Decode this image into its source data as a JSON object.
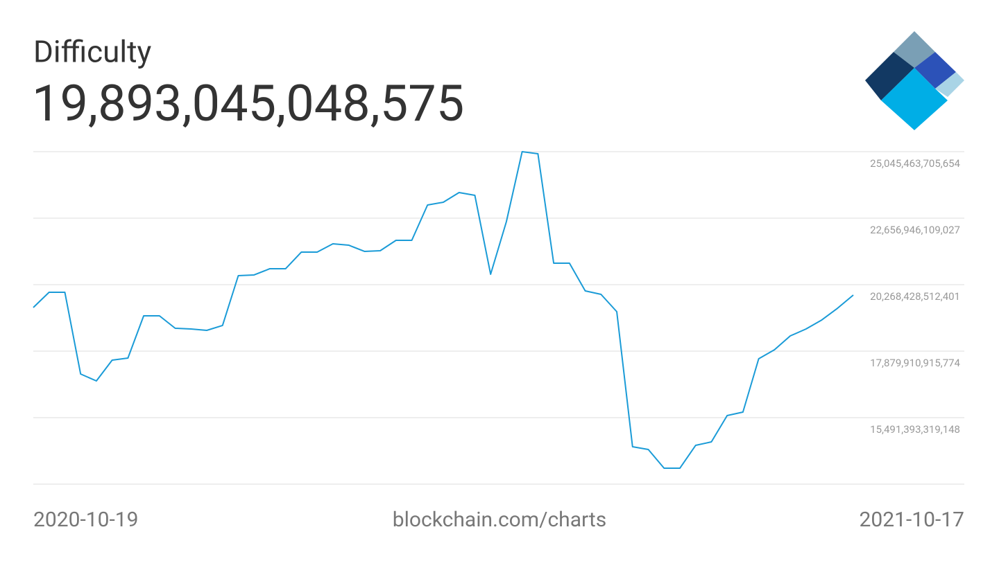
{
  "chart_data": {
    "type": "line",
    "title": "Difficulty",
    "subtitle": "19,893,045,048,575",
    "source": "blockchain.com/charts",
    "categories": [
      "2020-10-19",
      null,
      null,
      null,
      null,
      null,
      null,
      null,
      null,
      null,
      null,
      null,
      null,
      null,
      null,
      null,
      null,
      null,
      null,
      null,
      null,
      null,
      null,
      null,
      null,
      null,
      null,
      null,
      null,
      null,
      null,
      null,
      null,
      null,
      null,
      null,
      null,
      null,
      null,
      null,
      null,
      null,
      null,
      null,
      null,
      null,
      null,
      null,
      null,
      null,
      null,
      null,
      "2021-10-17"
    ],
    "series": [
      {
        "name": "Difficulty",
        "color": "#1a9bd7",
        "values": [
          19447000000000,
          19995000000000,
          19995000000000,
          17059000000000,
          16810000000000,
          17556000000000,
          17631000000000,
          19149000000000,
          19149000000000,
          18701000000000,
          18676000000000,
          18626000000000,
          18801000000000,
          20592000000000,
          20617000000000,
          20841000000000,
          20841000000000,
          21438000000000,
          21438000000000,
          21736000000000,
          21687000000000,
          21463000000000,
          21488000000000,
          21861000000000,
          21861000000000,
          23130000000000,
          23229000000000,
          23578000000000,
          23478000000000,
          20642000000000,
          22533000000000,
          25045000000000,
          24971000000000,
          21040000000000,
          21040000000000,
          20045000000000,
          19920000000000,
          19298000000000,
          14446000000000,
          14347000000000,
          13675000000000,
          13675000000000,
          14496000000000,
          14620000000000,
          15566000000000,
          15690000000000,
          17606000000000,
          17930000000000,
          18427000000000,
          18676000000000,
          19000000000000,
          19422000000000,
          19895000000000
        ]
      }
    ],
    "ylim": [
      13102875722521,
      25045463705654
    ],
    "yticks": [
      {
        "value": 25045463705654,
        "label": "25,045,463,705,654"
      },
      {
        "value": 22656946109027,
        "label": "22,656,946,109,027"
      },
      {
        "value": 20268428512401,
        "label": "20,268,428,512,401"
      },
      {
        "value": 17879910915774,
        "label": "17,879,910,915,774"
      },
      {
        "value": 15491393319148,
        "label": "15,491,393,319,148"
      }
    ],
    "grid": true
  }
}
